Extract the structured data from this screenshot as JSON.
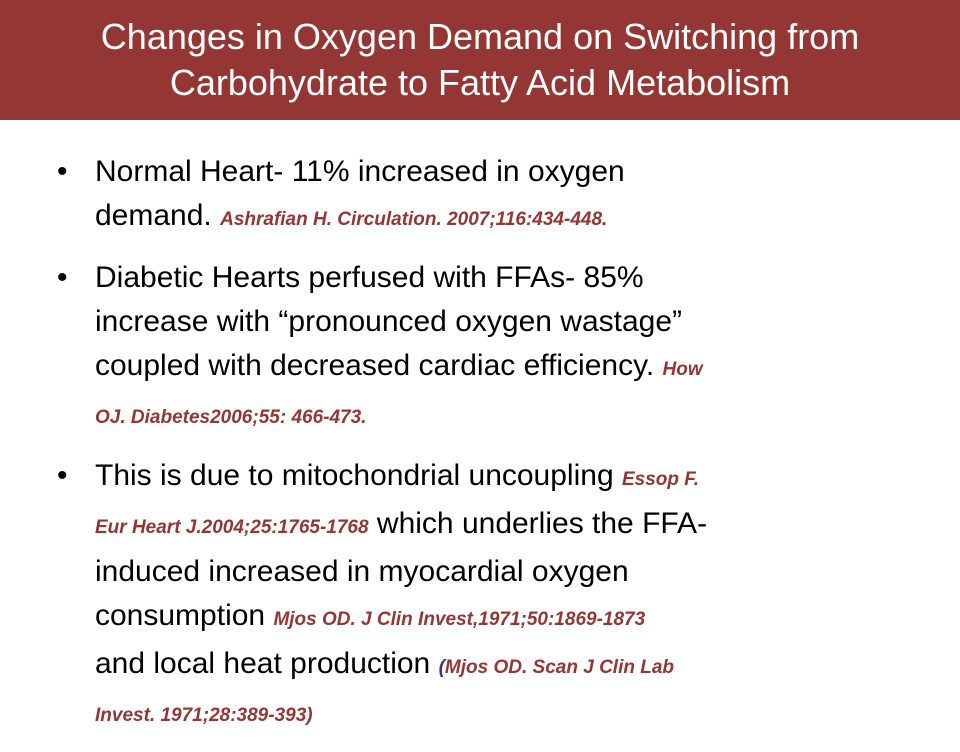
{
  "slide": {
    "title_line1": "Changes in Oxygen Demand on Switching from",
    "title_line2": "Carbohydrate to Fatty Acid Metabolism",
    "bullet_glyph": "•",
    "bullets": [
      {
        "lines": [
          {
            "t1": "Normal Heart- 11% increased in oxygen"
          },
          {
            "t1": "demand. ",
            "c1": "Ashrafian H. Circulation. 2007;116:434-448",
            "t2": "."
          }
        ]
      },
      {
        "lines": [
          {
            "t1": "Diabetic Hearts perfused with FFAs- 85%"
          },
          {
            "t1": "increase with “pronounced oxygen wastage”"
          },
          {
            "t1": "coupled with decreased cardiac efficiency. ",
            "c1": "How"
          },
          {
            "c1": "OJ. Diabetes2006;55: 466-473."
          }
        ]
      },
      {
        "lines": [
          {
            "t1": "This is due to mitochondrial uncoupling ",
            "c1": "Essop F."
          },
          {
            "c1": "Eur Heart J.2004;25:1765-1768",
            "t1": " which underlies the FFA-"
          },
          {
            "t1": "induced increased in myocardial oxygen"
          },
          {
            "t1": "consumption ",
            "c1": "Mjos OD. J Clin Invest,1971;50:1869-1873"
          },
          {
            "t1": "and local heat production ",
            "p1": "(",
            "c1": "Mjos OD. Scan J Clin Lab"
          },
          {
            "c1": "Invest. 1971;28:389-393)"
          }
        ]
      }
    ]
  },
  "colors": {
    "title_bar": "#943634",
    "title_text": "#ffffff",
    "body_text": "#000000",
    "citation": "#943634",
    "paren": "#4f2d7f"
  }
}
